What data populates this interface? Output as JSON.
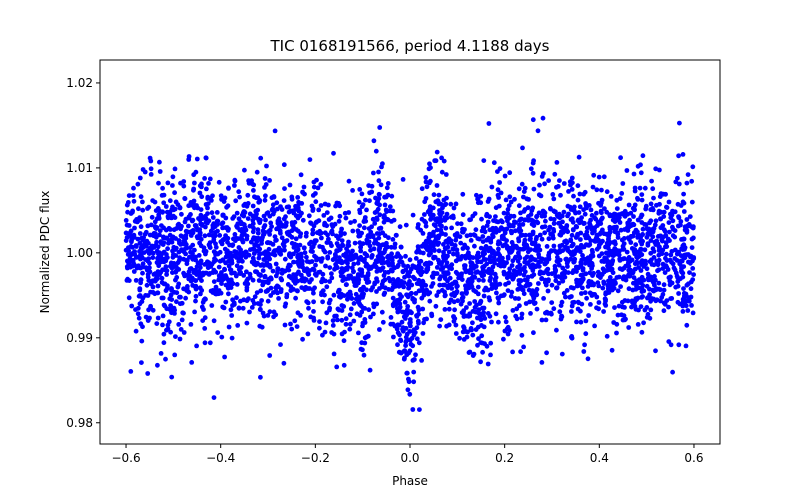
{
  "chart_data": {
    "type": "scatter",
    "title": "TIC 0168191566, period 4.1188 days",
    "xlabel": "Phase",
    "ylabel": "Normalized PDC flux",
    "xlim": [
      -0.655,
      0.655
    ],
    "ylim": [
      0.9775,
      1.0227
    ],
    "xticks": [
      -0.6,
      -0.4,
      -0.2,
      0.0,
      0.2,
      0.4,
      0.6
    ],
    "xtick_labels": [
      "−0.6",
      "−0.4",
      "−0.2",
      "0.0",
      "0.2",
      "0.4",
      "0.6"
    ],
    "yticks": [
      0.98,
      0.99,
      1.0,
      1.01,
      1.02
    ],
    "ytick_labels": [
      "0.98",
      "0.99",
      "1.00",
      "1.01",
      "1.02"
    ],
    "grid": false,
    "marker_color": "#0000ff",
    "series": [
      {
        "name": "PDC flux",
        "n_points": 3800,
        "phase_range": [
          -0.6,
          0.6
        ],
        "baseline": 1.0,
        "scatter_sigma": 0.0045,
        "dips": [
          {
            "center": -0.1,
            "depth": 0.0035,
            "width": 0.045
          },
          {
            "center": 0.0,
            "depth": 0.0085,
            "width": 0.025
          },
          {
            "center": 0.1,
            "depth": 0.0035,
            "width": 0.045
          }
        ],
        "bumps": [
          {
            "center": -0.06,
            "height": 0.005,
            "width": 0.025
          },
          {
            "center": 0.05,
            "height": 0.0055,
            "width": 0.025
          }
        ]
      }
    ]
  }
}
